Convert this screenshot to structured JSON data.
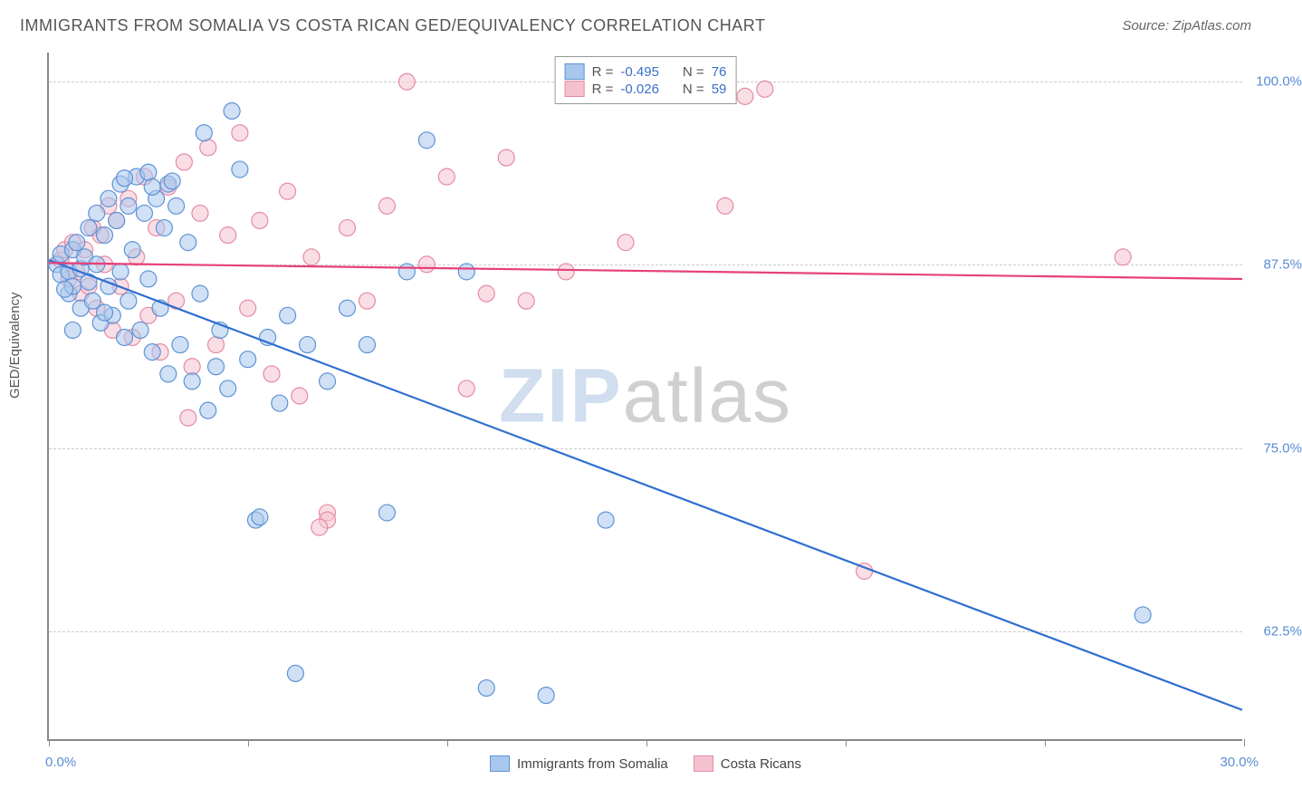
{
  "title": "IMMIGRANTS FROM SOMALIA VS COSTA RICAN GED/EQUIVALENCY CORRELATION CHART",
  "source": "Source: ZipAtlas.com",
  "ylabel": "GED/Equivalency",
  "watermark_zip": "ZIP",
  "watermark_atlas": "atlas",
  "chart": {
    "type": "scatter-with-regression",
    "background_color": "#ffffff",
    "grid_color": "#cccccc",
    "axis_color": "#888888",
    "xlim": [
      0,
      30
    ],
    "ylim": [
      55,
      102
    ],
    "x_ticks": [
      0,
      5,
      10,
      15,
      20,
      25,
      30
    ],
    "x_tick_labels_shown": {
      "0": "0.0%",
      "30": "30.0%"
    },
    "y_gridlines": [
      62.5,
      75.0,
      87.5,
      100.0
    ],
    "y_tick_labels": [
      "62.5%",
      "75.0%",
      "87.5%",
      "100.0%"
    ],
    "ytick_label_color": "#5b8bd4",
    "xaxis_label_color": "#5b8bd4",
    "marker_radius": 9,
    "marker_opacity": 0.55,
    "line_width": 2.2,
    "series": [
      {
        "name": "Immigrants from Somalia",
        "color_fill": "#a9c7ec",
        "color_stroke": "#5d93d6",
        "line_color": "#2f6fd0",
        "R": "-0.495",
        "N": "76",
        "regression": {
          "x1": 0,
          "y1": 87.8,
          "x2": 30,
          "y2": 57.0
        },
        "points": [
          [
            0.2,
            87.5
          ],
          [
            0.3,
            88.2
          ],
          [
            0.3,
            86.8
          ],
          [
            0.5,
            87.0
          ],
          [
            0.5,
            85.5
          ],
          [
            0.6,
            88.5
          ],
          [
            0.6,
            86.0
          ],
          [
            0.7,
            89.0
          ],
          [
            0.8,
            87.2
          ],
          [
            0.8,
            84.5
          ],
          [
            0.9,
            88.0
          ],
          [
            1.0,
            86.3
          ],
          [
            1.0,
            90.0
          ],
          [
            1.1,
            85.0
          ],
          [
            1.2,
            87.5
          ],
          [
            1.2,
            91.0
          ],
          [
            1.3,
            83.5
          ],
          [
            1.4,
            89.5
          ],
          [
            1.5,
            86.0
          ],
          [
            1.5,
            92.0
          ],
          [
            1.6,
            84.0
          ],
          [
            1.7,
            90.5
          ],
          [
            1.8,
            87.0
          ],
          [
            1.8,
            93.0
          ],
          [
            1.9,
            82.5
          ],
          [
            2.0,
            91.5
          ],
          [
            2.0,
            85.0
          ],
          [
            2.1,
            88.5
          ],
          [
            2.2,
            93.5
          ],
          [
            2.3,
            83.0
          ],
          [
            2.4,
            91.0
          ],
          [
            2.5,
            86.5
          ],
          [
            2.5,
            93.8
          ],
          [
            2.6,
            81.5
          ],
          [
            2.7,
            92.0
          ],
          [
            2.8,
            84.5
          ],
          [
            2.9,
            90.0
          ],
          [
            3.0,
            93.0
          ],
          [
            3.0,
            80.0
          ],
          [
            3.2,
            91.5
          ],
          [
            3.3,
            82.0
          ],
          [
            3.5,
            89.0
          ],
          [
            3.6,
            79.5
          ],
          [
            3.8,
            85.5
          ],
          [
            3.9,
            96.5
          ],
          [
            4.0,
            77.5
          ],
          [
            4.2,
            80.5
          ],
          [
            4.3,
            83.0
          ],
          [
            4.5,
            79.0
          ],
          [
            4.8,
            94.0
          ],
          [
            5.0,
            81.0
          ],
          [
            5.2,
            70.0
          ],
          [
            5.3,
            70.2
          ],
          [
            5.5,
            82.5
          ],
          [
            5.8,
            78.0
          ],
          [
            6.0,
            84.0
          ],
          [
            6.2,
            59.5
          ],
          [
            6.5,
            82.0
          ],
          [
            7.0,
            79.5
          ],
          [
            7.5,
            84.5
          ],
          [
            8.0,
            82.0
          ],
          [
            8.5,
            70.5
          ],
          [
            9.0,
            87.0
          ],
          [
            9.5,
            96.0
          ],
          [
            10.5,
            87.0
          ],
          [
            11.0,
            58.5
          ],
          [
            12.5,
            58.0
          ],
          [
            14.0,
            70.0
          ],
          [
            27.5,
            63.5
          ],
          [
            3.1,
            93.2
          ],
          [
            2.6,
            92.8
          ],
          [
            1.9,
            93.4
          ],
          [
            4.6,
            98.0
          ],
          [
            1.4,
            84.2
          ],
          [
            0.4,
            85.8
          ],
          [
            0.6,
            83.0
          ]
        ]
      },
      {
        "name": "Costa Ricans",
        "color_fill": "#f4c2cf",
        "color_stroke": "#e68aa5",
        "line_color": "#e6407b",
        "R": "-0.026",
        "N": "59",
        "regression": {
          "x1": 0,
          "y1": 87.6,
          "x2": 30,
          "y2": 86.5
        },
        "points": [
          [
            0.3,
            87.8
          ],
          [
            0.4,
            88.5
          ],
          [
            0.5,
            86.5
          ],
          [
            0.6,
            89.0
          ],
          [
            0.7,
            87.0
          ],
          [
            0.8,
            85.5
          ],
          [
            0.9,
            88.5
          ],
          [
            1.0,
            86.0
          ],
          [
            1.1,
            90.0
          ],
          [
            1.2,
            84.5
          ],
          [
            1.3,
            89.5
          ],
          [
            1.4,
            87.5
          ],
          [
            1.5,
            91.5
          ],
          [
            1.6,
            83.0
          ],
          [
            1.7,
            90.5
          ],
          [
            1.8,
            86.0
          ],
          [
            2.0,
            92.0
          ],
          [
            2.1,
            82.5
          ],
          [
            2.2,
            88.0
          ],
          [
            2.4,
            93.5
          ],
          [
            2.5,
            84.0
          ],
          [
            2.7,
            90.0
          ],
          [
            2.8,
            81.5
          ],
          [
            3.0,
            92.8
          ],
          [
            3.2,
            85.0
          ],
          [
            3.4,
            94.5
          ],
          [
            3.6,
            80.5
          ],
          [
            3.8,
            91.0
          ],
          [
            4.0,
            95.5
          ],
          [
            4.2,
            82.0
          ],
          [
            4.5,
            89.5
          ],
          [
            4.8,
            96.5
          ],
          [
            5.0,
            84.5
          ],
          [
            5.3,
            90.5
          ],
          [
            5.6,
            80.0
          ],
          [
            6.0,
            92.5
          ],
          [
            6.3,
            78.5
          ],
          [
            6.6,
            88.0
          ],
          [
            7.0,
            70.5
          ],
          [
            7.0,
            70.0
          ],
          [
            7.5,
            90.0
          ],
          [
            8.0,
            85.0
          ],
          [
            8.5,
            91.5
          ],
          [
            9.0,
            100.0
          ],
          [
            9.5,
            87.5
          ],
          [
            10.0,
            93.5
          ],
          [
            10.5,
            79.0
          ],
          [
            11.0,
            85.5
          ],
          [
            11.5,
            94.8
          ],
          [
            12.0,
            85.0
          ],
          [
            13.0,
            87.0
          ],
          [
            14.5,
            89.0
          ],
          [
            17.0,
            91.5
          ],
          [
            17.5,
            99.0
          ],
          [
            18.0,
            99.5
          ],
          [
            20.5,
            66.5
          ],
          [
            27.0,
            88.0
          ],
          [
            6.8,
            69.5
          ],
          [
            3.5,
            77.0
          ]
        ]
      }
    ]
  },
  "legend_top": {
    "R_label": "R =",
    "N_label": "N ="
  },
  "legend_bottom": {
    "series1": "Immigrants from Somalia",
    "series2": "Costa Ricans"
  }
}
